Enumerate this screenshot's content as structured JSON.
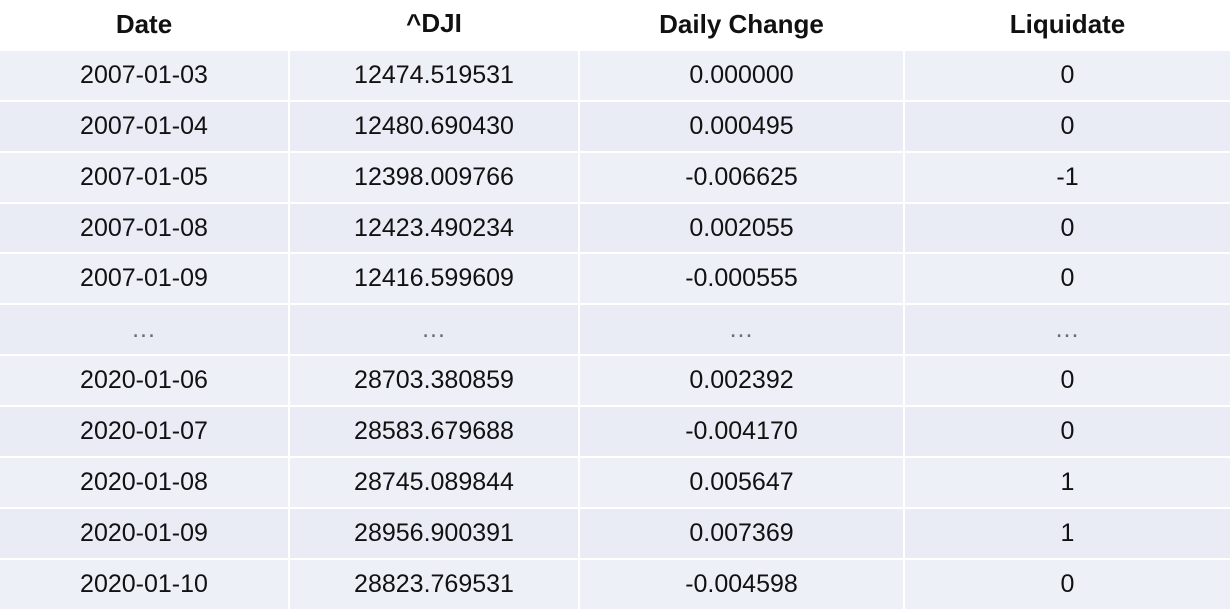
{
  "columns": [
    "Date",
    "^DJI",
    "Daily Change",
    "Liquidate"
  ],
  "rows": [
    [
      "2007-01-03",
      "12474.519531",
      "0.000000",
      "0"
    ],
    [
      "2007-01-04",
      "12480.690430",
      "0.000495",
      "0"
    ],
    [
      "2007-01-05",
      "12398.009766",
      "-0.006625",
      "-1"
    ],
    [
      "2007-01-08",
      "12423.490234",
      "0.002055",
      "0"
    ],
    [
      "2007-01-09",
      "12416.599609",
      "-0.000555",
      "0"
    ],
    [
      "...",
      "...",
      "...",
      "..."
    ],
    [
      "2020-01-06",
      "28703.380859",
      "0.002392",
      "0"
    ],
    [
      "2020-01-07",
      "28583.679688",
      "-0.004170",
      "0"
    ],
    [
      "2020-01-08",
      "28745.089844",
      "0.005647",
      "1"
    ],
    [
      "2020-01-09",
      "28956.900391",
      "0.007369",
      "1"
    ],
    [
      "2020-01-10",
      "28823.769531",
      "-0.004598",
      "0"
    ]
  ]
}
